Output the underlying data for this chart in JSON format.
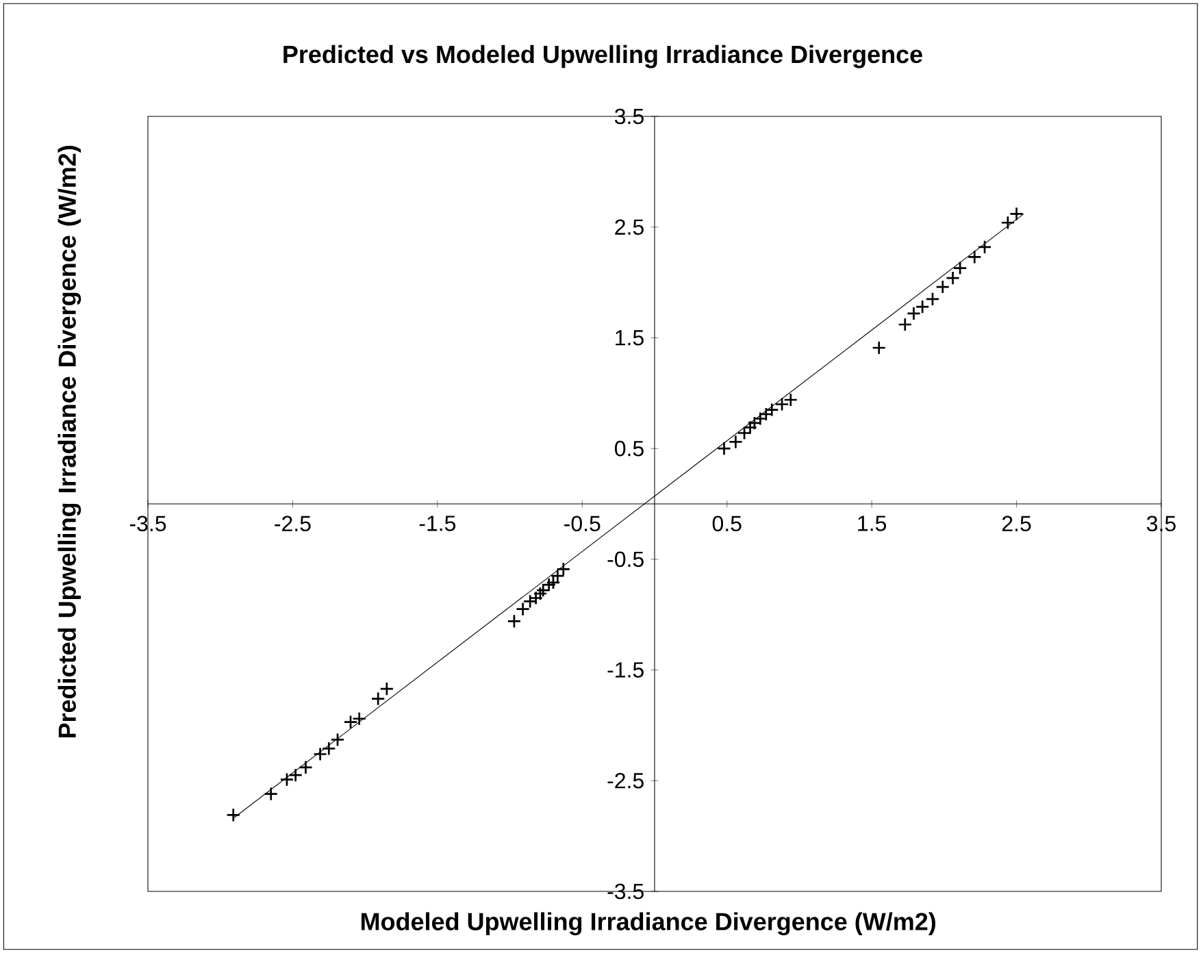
{
  "chart_data": {
    "type": "scatter",
    "title": "Predicted vs Modeled Upwelling Irradiance Divergence",
    "xlabel": "Modeled Upwelling Irradiance Divergence (W/m2)",
    "ylabel": "Predicted Upwelling Irradiance Divergence (W/m2)",
    "xlim": [
      -3.5,
      3.5
    ],
    "ylim": [
      -3.5,
      3.5
    ],
    "xticks": [
      -3.5,
      -2.5,
      -1.5,
      -0.5,
      0.5,
      1.5,
      2.5,
      3.5
    ],
    "yticks": [
      -3.5,
      -2.5,
      -1.5,
      -0.5,
      0.5,
      1.5,
      2.5,
      3.5
    ],
    "grid": false,
    "series": [
      {
        "marker": "cross",
        "color": "#000000",
        "x": [
          -2.91,
          -2.65,
          -2.54,
          -2.48,
          -2.41,
          -2.31,
          -2.25,
          -2.19,
          -2.1,
          -2.04,
          -1.91,
          -1.85,
          -0.97,
          -0.91,
          -0.86,
          -0.82,
          -0.79,
          -0.77,
          -0.73,
          -0.7,
          -0.67,
          -0.63,
          0.48,
          0.56,
          0.62,
          0.66,
          0.69,
          0.73,
          0.77,
          0.81,
          0.88,
          0.94,
          1.55,
          1.73,
          1.79,
          1.85,
          1.92,
          1.99,
          2.06,
          2.11,
          2.21,
          2.28,
          2.44,
          2.5
        ],
        "values": [
          -2.81,
          -2.62,
          -2.49,
          -2.45,
          -2.38,
          -2.26,
          -2.21,
          -2.13,
          -1.97,
          -1.94,
          -1.76,
          -1.67,
          -1.06,
          -0.95,
          -0.88,
          -0.85,
          -0.81,
          -0.78,
          -0.73,
          -0.71,
          -0.65,
          -0.59,
          0.5,
          0.56,
          0.64,
          0.69,
          0.73,
          0.77,
          0.81,
          0.85,
          0.9,
          0.94,
          1.41,
          1.62,
          1.72,
          1.78,
          1.85,
          1.96,
          2.04,
          2.13,
          2.23,
          2.32,
          2.54,
          2.62
        ]
      },
      {
        "type": "line",
        "marker": "none",
        "line_style": "solid",
        "color": "#000000",
        "x": [
          -2.91,
          2.55
        ],
        "values": [
          -2.84,
          2.62
        ]
      }
    ]
  }
}
